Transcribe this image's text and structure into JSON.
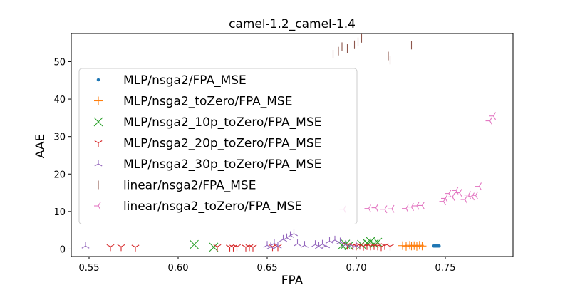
{
  "chart_data": {
    "type": "scatter",
    "title": "camel-1.2_camel-1.4",
    "xlabel": "FPA",
    "ylabel": "AAE",
    "xlim": [
      0.54,
      0.788
    ],
    "ylim": [
      -2.0,
      57.5
    ],
    "xticks": [
      "0.55",
      "0.60",
      "0.65",
      "0.70",
      "0.75"
    ],
    "xtick_values": [
      0.55,
      0.6,
      0.65,
      0.7,
      0.75
    ],
    "yticks": [
      "0",
      "10",
      "20",
      "30",
      "40",
      "50"
    ],
    "ytick_values": [
      0,
      10,
      20,
      30,
      40,
      50
    ],
    "legend_position": "center-left",
    "grid": false,
    "series": [
      {
        "name": "MLP/nsga2/FPA_MSE",
        "marker": "point",
        "color": "#1f77b4",
        "points": [
          [
            0.7435,
            0.8
          ],
          [
            0.744,
            0.8
          ],
          [
            0.7445,
            0.8
          ],
          [
            0.745,
            0.8
          ],
          [
            0.7455,
            0.8
          ],
          [
            0.746,
            0.8
          ],
          [
            0.7465,
            0.8
          ]
        ]
      },
      {
        "name": "MLP/nsga2_toZero/FPA_MSE",
        "marker": "plus",
        "color": "#ff7f0e",
        "points": [
          [
            0.726,
            0.9
          ],
          [
            0.728,
            0.7
          ],
          [
            0.73,
            1.0
          ],
          [
            0.731,
            0.8
          ],
          [
            0.7325,
            0.9
          ],
          [
            0.734,
            0.7
          ],
          [
            0.7355,
            1.0
          ],
          [
            0.737,
            0.8
          ]
        ]
      },
      {
        "name": "MLP/nsga2_10p_toZero/FPA_MSE",
        "marker": "x",
        "color": "#2ca02c",
        "points": [
          [
            0.609,
            1.2
          ],
          [
            0.62,
            0.5
          ],
          [
            0.692,
            1.0
          ],
          [
            0.694,
            1.3
          ],
          [
            0.696,
            0.9
          ],
          [
            0.703,
            1.2
          ],
          [
            0.706,
            1.6
          ],
          [
            0.708,
            2.0
          ],
          [
            0.71,
            1.4
          ],
          [
            0.712,
            1.8
          ]
        ]
      },
      {
        "name": "MLP/nsga2_20p_toZero/FPA_MSE",
        "marker": "tri_down",
        "color": "#d62728",
        "points": [
          [
            0.562,
            0.6
          ],
          [
            0.568,
            0.6
          ],
          [
            0.576,
            0.5
          ],
          [
            0.622,
            0.6
          ],
          [
            0.629,
            0.5
          ],
          [
            0.631,
            0.5
          ],
          [
            0.633,
            0.6
          ],
          [
            0.638,
            0.5
          ],
          [
            0.64,
            0.6
          ],
          [
            0.642,
            0.5
          ],
          [
            0.653,
            0.6
          ],
          [
            0.656,
            0.6
          ],
          [
            0.695,
            1.0
          ],
          [
            0.698,
            0.9
          ],
          [
            0.7,
            0.8
          ],
          [
            0.702,
            1.0
          ],
          [
            0.704,
            0.7
          ],
          [
            0.706,
            0.9
          ],
          [
            0.708,
            0.8
          ],
          [
            0.71,
            0.9
          ],
          [
            0.712,
            0.8
          ],
          [
            0.714,
            0.6
          ],
          [
            0.716,
            0.9
          ],
          [
            0.719,
            0.7
          ]
        ]
      },
      {
        "name": "MLP/nsga2_30p_toZero/FPA_MSE",
        "marker": "tri_up",
        "color": "#9467bd",
        "points": [
          [
            0.548,
            0.8
          ],
          [
            0.65,
            1.0
          ],
          [
            0.652,
            0.6
          ],
          [
            0.654,
            1.5
          ],
          [
            0.656,
            0.8
          ],
          [
            0.659,
            2.6
          ],
          [
            0.661,
            3.0
          ],
          [
            0.663,
            3.6
          ],
          [
            0.665,
            4.1
          ],
          [
            0.667,
            1.4
          ],
          [
            0.671,
            1.0
          ],
          [
            0.677,
            1.2
          ],
          [
            0.679,
            0.7
          ],
          [
            0.681,
            1.3
          ],
          [
            0.683,
            0.9
          ],
          [
            0.685,
            2.1
          ],
          [
            0.688,
            2.4
          ],
          [
            0.691,
            1.9
          ],
          [
            0.694,
            1.2
          ],
          [
            0.697,
            1.1
          ],
          [
            0.7,
            0.9
          ]
        ]
      },
      {
        "name": "linear/nsga2/FPA_MSE",
        "marker": "vline",
        "color": "#8c564b",
        "points": [
          [
            0.687,
            52.0
          ],
          [
            0.69,
            52.8
          ],
          [
            0.692,
            54.0
          ],
          [
            0.695,
            53.5
          ],
          [
            0.699,
            54.5
          ],
          [
            0.701,
            55.3
          ],
          [
            0.703,
            56.2
          ],
          [
            0.718,
            51.5
          ],
          [
            0.719,
            50.4
          ],
          [
            0.731,
            54.4
          ]
        ]
      },
      {
        "name": "linear/nsga2_toZero/FPA_MSE",
        "marker": "tri_left",
        "color": "#e377c2",
        "points": [
          [
            0.693,
            10.6
          ],
          [
            0.707,
            10.8
          ],
          [
            0.711,
            11.0
          ],
          [
            0.716,
            10.6
          ],
          [
            0.72,
            10.7
          ],
          [
            0.728,
            10.8
          ],
          [
            0.731,
            11.2
          ],
          [
            0.734,
            11.5
          ],
          [
            0.737,
            11.6
          ],
          [
            0.749,
            12.7
          ],
          [
            0.75,
            13.5
          ],
          [
            0.752,
            14.8
          ],
          [
            0.754,
            13.9
          ],
          [
            0.756,
            15.6
          ],
          [
            0.758,
            15.0
          ],
          [
            0.761,
            13.2
          ],
          [
            0.763,
            14.4
          ],
          [
            0.765,
            14.0
          ],
          [
            0.767,
            14.3
          ],
          [
            0.769,
            16.7
          ],
          [
            0.775,
            34.2
          ],
          [
            0.777,
            35.5
          ]
        ]
      }
    ]
  }
}
